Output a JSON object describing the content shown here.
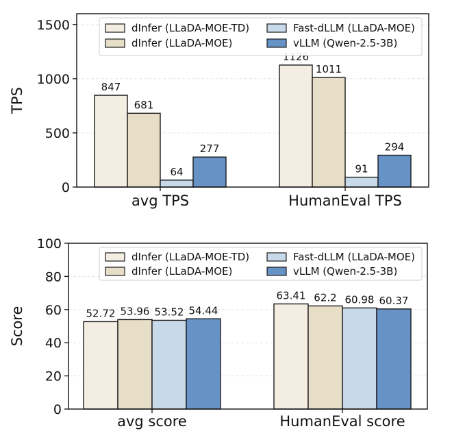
{
  "chart_data": [
    {
      "type": "bar",
      "ylabel": "TPS",
      "ylim": [
        0,
        1600
      ],
      "yticks": [
        0,
        500,
        1000,
        1500
      ],
      "grid": true,
      "legend_position": "top",
      "categories": [
        "avg TPS",
        "HumanEval TPS"
      ],
      "series": [
        {
          "name": "dInfer (LLaDA-MOE-TD)",
          "color": "#f4ede2",
          "values": [
            847,
            1126
          ],
          "labels": [
            "847",
            "1126"
          ]
        },
        {
          "name": "dInfer (LLaDA-MOE)",
          "color": "#e7dec7",
          "values": [
            681,
            1011
          ],
          "labels": [
            "681",
            "1011"
          ]
        },
        {
          "name": "Fast-dLLM (LLaDA-MOE)",
          "color": "#c8d9ea",
          "values": [
            64,
            91
          ],
          "labels": [
            "64",
            "91"
          ]
        },
        {
          "name": "vLLM (Qwen-2.5-3B)",
          "color": "#6792c6",
          "values": [
            277,
            294
          ],
          "labels": [
            "277",
            "294"
          ]
        }
      ]
    },
    {
      "type": "bar",
      "ylabel": "Score",
      "ylim": [
        0,
        100
      ],
      "yticks": [
        0,
        20,
        40,
        60,
        80,
        100
      ],
      "grid": true,
      "legend_position": "top",
      "categories": [
        "avg score",
        "HumanEval score"
      ],
      "series": [
        {
          "name": "dInfer (LLaDA-MOE-TD)",
          "color": "#f4ede2",
          "values": [
            52.72,
            63.41
          ],
          "labels": [
            "52.72",
            "63.41"
          ]
        },
        {
          "name": "dInfer (LLaDA-MOE)",
          "color": "#e7dec7",
          "values": [
            53.96,
            62.2
          ],
          "labels": [
            "53.96",
            "62.2"
          ]
        },
        {
          "name": "Fast-dLLM (LLaDA-MOE)",
          "color": "#c8d9ea",
          "values": [
            53.52,
            60.98
          ],
          "labels": [
            "53.52",
            "60.98"
          ]
        },
        {
          "name": "vLLM (Qwen-2.5-3B)",
          "color": "#6792c6",
          "values": [
            54.44,
            60.37
          ],
          "labels": [
            "54.44",
            "60.37"
          ]
        }
      ]
    }
  ]
}
